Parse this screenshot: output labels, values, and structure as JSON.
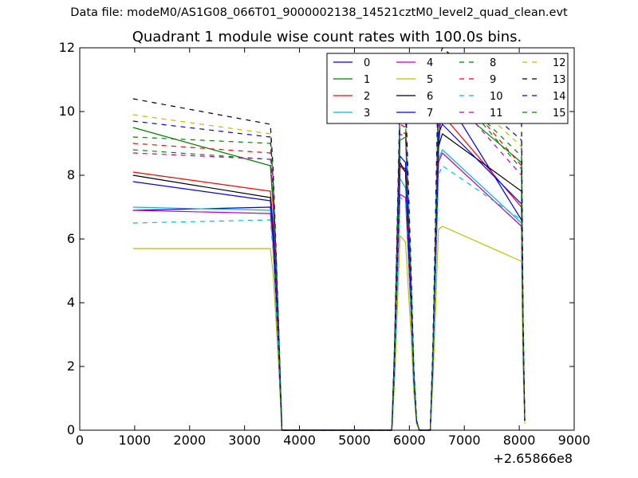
{
  "header": {
    "suptitle": "Data file: modeM0/AS1G08_066T01_9000002138_14521cztM0_level2_quad_clean.evt",
    "title": "Quadrant 1 module wise count rates with 100.0s bins."
  },
  "chart_data": {
    "type": "line",
    "title": "Quadrant 1 module wise count rates with 100.0s bins.",
    "xlabel": "",
    "ylabel": "",
    "x_offset_label": "+2.65866e8",
    "xlim": [
      0,
      9000
    ],
    "ylim": [
      0,
      12
    ],
    "xticks": [
      "0",
      "1000",
      "2000",
      "3000",
      "4000",
      "5000",
      "6000",
      "7000",
      "8000",
      "9000"
    ],
    "yticks": [
      "0",
      "2",
      "4",
      "6",
      "8",
      "10",
      "12"
    ],
    "legend": {
      "position": "top-right",
      "ncol": 4
    },
    "x": [
      970,
      3470,
      3520,
      3570,
      3620,
      3680,
      5680,
      5730,
      5830,
      5930,
      6030,
      6080,
      6130,
      6180,
      6380,
      6430,
      6530,
      6600,
      8040,
      8070,
      8100
    ],
    "series": [
      {
        "name": "0",
        "color": "#0000ff",
        "dash": "solid",
        "values": [
          6.9,
          7.0,
          6.0,
          4.3,
          2.4,
          0,
          0,
          2.0,
          8.3,
          8.2,
          4.0,
          1.6,
          0.3,
          0,
          0,
          2.2,
          8.8,
          10.6,
          6.6,
          2.5,
          0.3
        ]
      },
      {
        "name": "1",
        "color": "#008000",
        "dash": "solid",
        "values": [
          9.5,
          8.3,
          7.0,
          5.0,
          2.8,
          0,
          0,
          2.3,
          9.1,
          9.2,
          4.5,
          1.8,
          0.3,
          0,
          0,
          2.4,
          10.2,
          10.5,
          8.4,
          3.0,
          0.3
        ]
      },
      {
        "name": "2",
        "color": "#ff0000",
        "dash": "solid",
        "values": [
          8.1,
          7.5,
          6.4,
          4.6,
          2.6,
          0,
          0,
          2.1,
          8.3,
          8.1,
          4.1,
          1.6,
          0.3,
          0,
          0,
          2.2,
          9.5,
          9.9,
          7.0,
          2.7,
          0.3
        ]
      },
      {
        "name": "3",
        "color": "#00bfbf",
        "dash": "solid",
        "values": [
          7.0,
          6.9,
          5.9,
          4.2,
          2.4,
          0,
          0,
          1.9,
          7.9,
          7.6,
          3.8,
          1.5,
          0.3,
          0,
          0,
          2.0,
          8.5,
          8.8,
          6.5,
          2.5,
          0.3
        ]
      },
      {
        "name": "4",
        "color": "#bf00bf",
        "dash": "solid",
        "values": [
          6.9,
          6.8,
          5.8,
          4.1,
          2.3,
          0,
          0,
          1.9,
          7.4,
          7.3,
          3.7,
          1.4,
          0.3,
          0,
          0,
          2.0,
          8.4,
          8.7,
          6.4,
          2.4,
          0.3
        ]
      },
      {
        "name": "5",
        "color": "#bfbf00",
        "dash": "solid",
        "values": [
          5.7,
          5.7,
          4.9,
          3.5,
          2.0,
          0,
          0,
          1.5,
          6.1,
          5.9,
          3.0,
          1.2,
          0.2,
          0,
          0,
          1.6,
          6.3,
          6.4,
          5.3,
          2.0,
          0.2
        ]
      },
      {
        "name": "6",
        "color": "#000000",
        "dash": "solid",
        "values": [
          8.0,
          7.3,
          6.2,
          4.4,
          2.5,
          0,
          0,
          2.0,
          8.4,
          8.1,
          4.0,
          1.6,
          0.3,
          0,
          0,
          2.2,
          8.9,
          9.3,
          7.5,
          2.8,
          0.3
        ]
      },
      {
        "name": "7",
        "color": "#0000ff",
        "dash": "solid",
        "values": [
          7.8,
          7.2,
          6.1,
          4.4,
          2.5,
          0,
          0,
          2.0,
          8.6,
          8.4,
          4.1,
          1.6,
          0.3,
          0,
          0,
          2.2,
          9.3,
          9.6,
          7.1,
          2.7,
          0.3
        ]
      },
      {
        "name": "8",
        "color": "#008000",
        "dash": "dashed",
        "values": [
          8.8,
          8.5,
          7.2,
          5.1,
          2.9,
          0,
          0,
          2.4,
          9.4,
          9.3,
          4.6,
          1.8,
          0.3,
          0,
          0,
          2.5,
          10.3,
          11.1,
          8.2,
          3.1,
          0.3
        ]
      },
      {
        "name": "9",
        "color": "#ff0000",
        "dash": "dashed",
        "values": [
          9.0,
          8.7,
          7.4,
          5.3,
          3.0,
          0,
          0,
          2.4,
          9.6,
          9.5,
          4.7,
          1.9,
          0.3,
          0,
          0,
          2.6,
          10.5,
          11.2,
          8.3,
          3.1,
          0.3
        ]
      },
      {
        "name": "10",
        "color": "#00bfbf",
        "dash": "dashed",
        "values": [
          6.5,
          6.6,
          5.6,
          4.0,
          2.3,
          0,
          0,
          1.8,
          7.3,
          7.2,
          3.6,
          1.4,
          0.3,
          0,
          0,
          1.9,
          8.0,
          8.3,
          6.6,
          2.5,
          0.3
        ]
      },
      {
        "name": "11",
        "color": "#bf00bf",
        "dash": "dashed",
        "values": [
          8.7,
          8.5,
          7.2,
          5.1,
          2.9,
          0,
          0,
          2.3,
          9.3,
          9.2,
          4.5,
          1.8,
          0.3,
          0,
          0,
          2.5,
          10.0,
          10.8,
          8.0,
          3.0,
          0.3
        ]
      },
      {
        "name": "12",
        "color": "#bfbf00",
        "dash": "dashed",
        "values": [
          9.9,
          9.3,
          7.9,
          5.6,
          3.2,
          0,
          0,
          2.6,
          10.1,
          10.2,
          5.0,
          2.0,
          0.3,
          0,
          0,
          2.7,
          10.9,
          11.2,
          8.9,
          3.3,
          0.3
        ]
      },
      {
        "name": "13",
        "color": "#000000",
        "dash": "dashed",
        "values": [
          10.4,
          9.6,
          8.2,
          5.8,
          3.3,
          0,
          0,
          2.7,
          10.6,
          10.5,
          5.1,
          2.0,
          0.3,
          0,
          0,
          2.8,
          11.6,
          12.0,
          9.9,
          3.6,
          0.4
        ]
      },
      {
        "name": "14",
        "color": "#0000ff",
        "dash": "dashed",
        "values": [
          9.7,
          9.2,
          7.8,
          5.6,
          3.2,
          0,
          0,
          2.6,
          10.1,
          9.9,
          4.9,
          1.9,
          0.3,
          0,
          0,
          2.7,
          10.9,
          11.3,
          9.1,
          3.4,
          0.3
        ]
      },
      {
        "name": "15",
        "color": "#008000",
        "dash": "dashed",
        "values": [
          9.2,
          9.0,
          7.6,
          5.4,
          3.1,
          0,
          0,
          2.5,
          9.8,
          9.7,
          4.8,
          1.9,
          0.3,
          0,
          0,
          2.6,
          10.7,
          11.0,
          8.6,
          3.2,
          0.3
        ]
      }
    ]
  }
}
